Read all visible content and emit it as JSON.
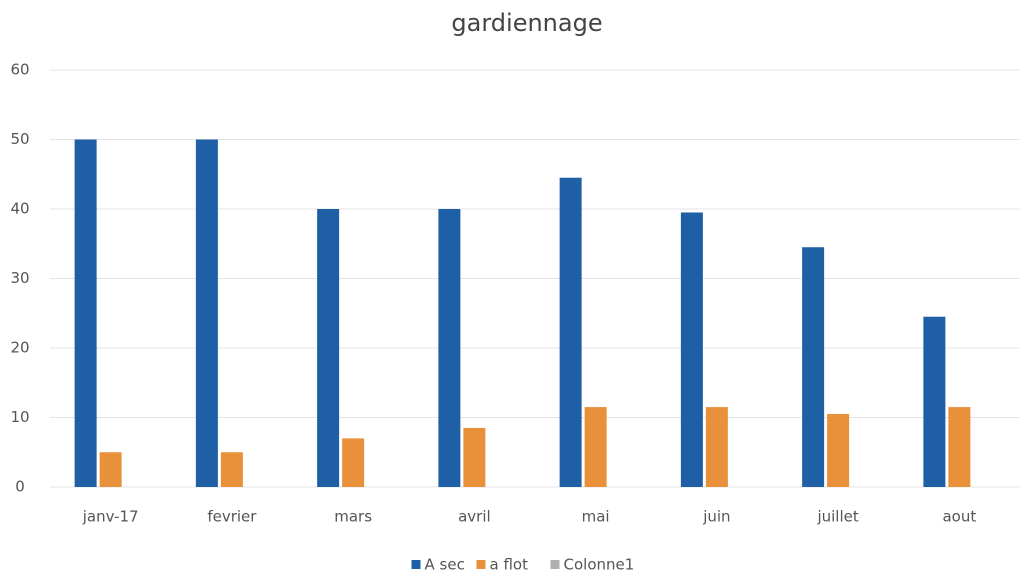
{
  "chart_data": {
    "type": "bar",
    "title": "gardiennage",
    "categories": [
      "janv-17",
      "fevrier",
      "mars",
      "avril",
      "mai",
      "juin",
      "juillet",
      "aout"
    ],
    "series": [
      {
        "name": "A sec",
        "color": "#1f5fa6",
        "values": [
          50,
          50,
          40,
          40,
          44.5,
          39.5,
          34.5,
          24.5
        ]
      },
      {
        "name": "a flot",
        "color": "#e8913a",
        "values": [
          5,
          5,
          7,
          8.5,
          11.5,
          11.5,
          10.5,
          11.5
        ]
      },
      {
        "name": "Colonne1",
        "color": "#b0b0b0",
        "values": [
          null,
          null,
          null,
          null,
          null,
          null,
          null,
          null
        ]
      }
    ],
    "ylim": [
      0,
      60
    ],
    "yticks": [
      0,
      10,
      20,
      30,
      40,
      50,
      60
    ],
    "grid": true,
    "legend": "bottom"
  }
}
